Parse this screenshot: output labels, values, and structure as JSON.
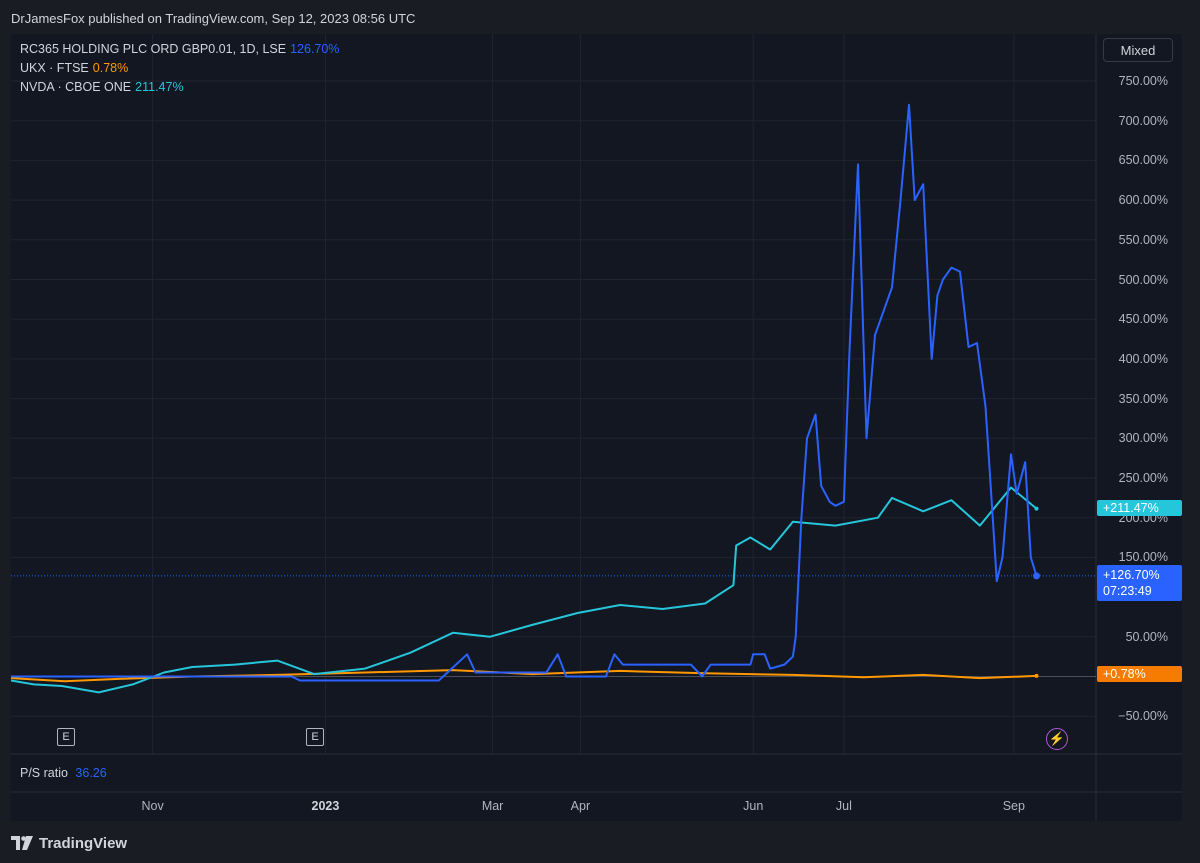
{
  "header": {
    "publish_line": "DrJamesFox published on TradingView.com, Sep 12, 2023 08:56 UTC"
  },
  "toolbar": {
    "scale_mode": "Mixed"
  },
  "legend": [
    {
      "name": "RC365 HOLDING PLC ORD GBP0.01, 1D, LSE",
      "value": "126.70%",
      "color": "#2962ff"
    },
    {
      "name": "UKX · FTSE",
      "value": "0.78%",
      "color": "#ff9800"
    },
    {
      "name": "NVDA · CBOE ONE",
      "value": "211.47%",
      "color": "#26c6da"
    }
  ],
  "price_tags": {
    "nvda": "+211.47%",
    "rc365": "+126.70%",
    "rc365_countdown": "07:23:49",
    "ukx": "+0.78%"
  },
  "indicator": {
    "label": "P/S ratio",
    "value": "36.26"
  },
  "footer": {
    "brand": "TradingView",
    "icon": "tradingview-logo-icon"
  },
  "events": {
    "earnings_label": "E",
    "flash_icon": "lightning-icon"
  },
  "chart_data": {
    "type": "line",
    "ylim": [
      -75,
      775
    ],
    "y_ticks": [
      -50,
      50,
      150,
      200,
      250,
      300,
      350,
      400,
      450,
      500,
      550,
      600,
      650,
      700,
      750
    ],
    "y_tick_labels": [
      "−50.00%",
      "50.00%",
      "150.00%",
      "200.00%",
      "250.00%",
      "300.00%",
      "350.00%",
      "400.00%",
      "450.00%",
      "500.00%",
      "550.00%",
      "600.00%",
      "650.00%",
      "700.00%",
      "750.00%"
    ],
    "x_range": [
      "2022-09-12",
      "2023-09-30"
    ],
    "x_ticks": [
      {
        "label": "Nov",
        "date": "2022-11-01",
        "bold": false
      },
      {
        "label": "2023",
        "date": "2023-01-01",
        "bold": true
      },
      {
        "label": "Mar",
        "date": "2023-03-01",
        "bold": false
      },
      {
        "label": "Apr",
        "date": "2023-04-01",
        "bold": false
      },
      {
        "label": "Jun",
        "date": "2023-06-01",
        "bold": false
      },
      {
        "label": "Jul",
        "date": "2023-07-03",
        "bold": false
      },
      {
        "label": "Sep",
        "date": "2023-09-01",
        "bold": false
      }
    ],
    "earnings_dates": [
      "2022-10-19",
      "2022-12-28"
    ],
    "series": [
      {
        "name": "RC365 HOLDING PLC ORD GBP0.01, 1D, LSE",
        "color": "#2962ff",
        "points": [
          [
            "2022-09-12",
            0
          ],
          [
            "2022-11-15",
            0
          ],
          [
            "2022-12-20",
            0
          ],
          [
            "2022-12-23",
            -5
          ],
          [
            "2023-02-10",
            -5
          ],
          [
            "2023-02-20",
            28
          ],
          [
            "2023-02-23",
            5
          ],
          [
            "2023-03-20",
            5
          ],
          [
            "2023-03-24",
            28
          ],
          [
            "2023-03-27",
            0
          ],
          [
            "2023-04-10",
            0
          ],
          [
            "2023-04-13",
            28
          ],
          [
            "2023-04-16",
            15
          ],
          [
            "2023-05-10",
            15
          ],
          [
            "2023-05-14",
            0
          ],
          [
            "2023-05-17",
            15
          ],
          [
            "2023-05-31",
            15
          ],
          [
            "2023-06-01",
            28
          ],
          [
            "2023-06-05",
            28
          ],
          [
            "2023-06-07",
            10
          ],
          [
            "2023-06-12",
            15
          ],
          [
            "2023-06-15",
            25
          ],
          [
            "2023-06-16",
            50
          ],
          [
            "2023-06-18",
            200
          ],
          [
            "2023-06-20",
            300
          ],
          [
            "2023-06-23",
            330
          ],
          [
            "2023-06-25",
            240
          ],
          [
            "2023-06-28",
            220
          ],
          [
            "2023-06-30",
            215
          ],
          [
            "2023-07-03",
            220
          ],
          [
            "2023-07-05",
            410
          ],
          [
            "2023-07-08",
            645
          ],
          [
            "2023-07-11",
            300
          ],
          [
            "2023-07-14",
            430
          ],
          [
            "2023-07-17",
            460
          ],
          [
            "2023-07-20",
            490
          ],
          [
            "2023-07-23",
            600
          ],
          [
            "2023-07-26",
            720
          ],
          [
            "2023-07-28",
            600
          ],
          [
            "2023-07-31",
            620
          ],
          [
            "2023-08-03",
            400
          ],
          [
            "2023-08-05",
            480
          ],
          [
            "2023-08-07",
            500
          ],
          [
            "2023-08-10",
            515
          ],
          [
            "2023-08-13",
            510
          ],
          [
            "2023-08-16",
            415
          ],
          [
            "2023-08-19",
            420
          ],
          [
            "2023-08-22",
            340
          ],
          [
            "2023-08-24",
            230
          ],
          [
            "2023-08-26",
            120
          ],
          [
            "2023-08-28",
            150
          ],
          [
            "2023-08-31",
            280
          ],
          [
            "2023-09-02",
            230
          ],
          [
            "2023-09-05",
            270
          ],
          [
            "2023-09-07",
            150
          ],
          [
            "2023-09-09",
            126.7
          ]
        ]
      },
      {
        "name": "UKX · FTSE",
        "color": "#ff9800",
        "points": [
          [
            "2022-09-12",
            -2
          ],
          [
            "2022-10-01",
            -6
          ],
          [
            "2022-10-20",
            -3
          ],
          [
            "2022-11-15",
            0
          ],
          [
            "2022-12-15",
            2
          ],
          [
            "2023-01-15",
            5
          ],
          [
            "2023-02-15",
            8
          ],
          [
            "2023-03-15",
            3
          ],
          [
            "2023-04-15",
            7
          ],
          [
            "2023-05-15",
            4
          ],
          [
            "2023-06-15",
            2
          ],
          [
            "2023-07-10",
            -1
          ],
          [
            "2023-07-31",
            2
          ],
          [
            "2023-08-20",
            -2
          ],
          [
            "2023-09-09",
            0.78
          ]
        ]
      },
      {
        "name": "NVDA · CBOE ONE",
        "color": "#26c6da",
        "points": [
          [
            "2022-09-12",
            -5
          ],
          [
            "2022-09-20",
            -10
          ],
          [
            "2022-09-30",
            -12
          ],
          [
            "2022-10-13",
            -20
          ],
          [
            "2022-10-25",
            -10
          ],
          [
            "2022-11-05",
            5
          ],
          [
            "2022-11-15",
            12
          ],
          [
            "2022-11-30",
            15
          ],
          [
            "2022-12-15",
            20
          ],
          [
            "2022-12-28",
            3
          ],
          [
            "2023-01-15",
            10
          ],
          [
            "2023-01-31",
            30
          ],
          [
            "2023-02-15",
            55
          ],
          [
            "2023-02-28",
            50
          ],
          [
            "2023-03-15",
            65
          ],
          [
            "2023-03-31",
            80
          ],
          [
            "2023-04-15",
            90
          ],
          [
            "2023-04-30",
            85
          ],
          [
            "2023-05-15",
            92
          ],
          [
            "2023-05-25",
            115
          ],
          [
            "2023-05-26",
            165
          ],
          [
            "2023-05-31",
            175
          ],
          [
            "2023-06-07",
            160
          ],
          [
            "2023-06-15",
            195
          ],
          [
            "2023-06-30",
            190
          ],
          [
            "2023-07-15",
            200
          ],
          [
            "2023-07-20",
            225
          ],
          [
            "2023-07-31",
            208
          ],
          [
            "2023-08-10",
            222
          ],
          [
            "2023-08-20",
            190
          ],
          [
            "2023-08-31",
            238
          ],
          [
            "2023-09-09",
            211.47
          ]
        ]
      }
    ]
  }
}
